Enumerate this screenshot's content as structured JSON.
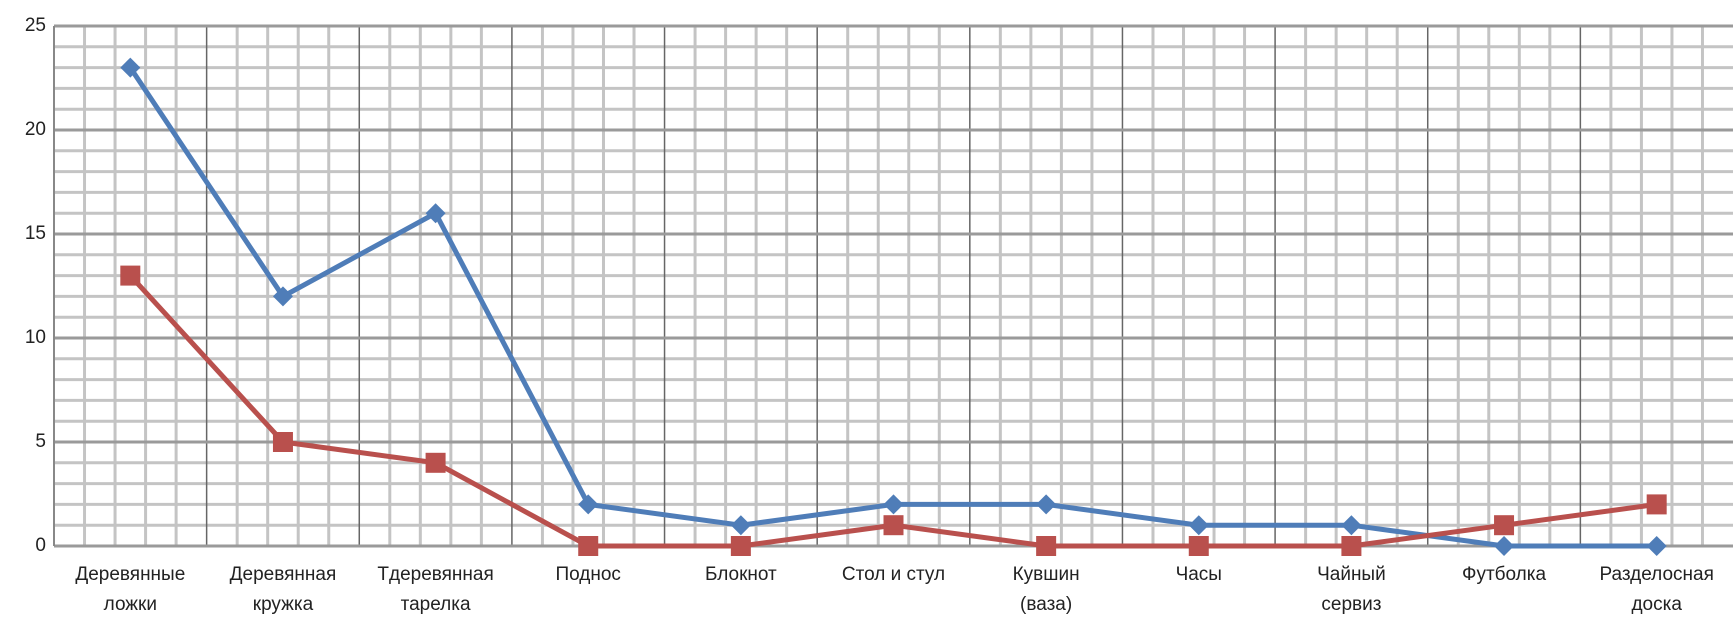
{
  "chart_data": {
    "type": "line",
    "categories": [
      "Деревянные\nложки",
      "Деревянная\nкружка",
      "Тдеревянная\nтарелка",
      "Поднос",
      "Блокнот",
      "Стол и стул",
      "Кувшин\n(ваза)",
      "Часы",
      "Чайный\nсервиз",
      "Футболка",
      "Разделосная\nдоска"
    ],
    "series": [
      {
        "color": "#4f7db8",
        "marker": "diamond",
        "values": [
          23,
          12,
          16,
          2,
          1,
          2,
          2,
          1,
          1,
          0,
          0
        ]
      },
      {
        "color": "#b9504d",
        "marker": "square",
        "values": [
          13,
          5,
          4,
          0,
          0,
          1,
          0,
          0,
          0,
          1,
          2
        ]
      }
    ],
    "ylim": [
      0,
      25
    ],
    "yticks": [
      0,
      5,
      10,
      15,
      20,
      25
    ],
    "grid": true
  }
}
